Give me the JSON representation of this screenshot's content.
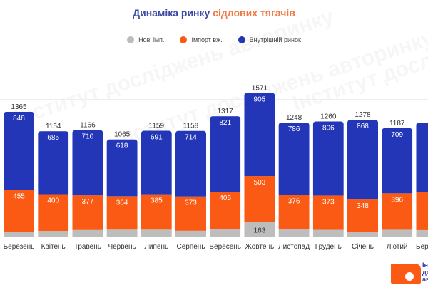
{
  "title": {
    "part1": "Динаміка ринку",
    "part2": "сідлових тягачів"
  },
  "legend": [
    {
      "label": "Нові імп.",
      "color": "#bdbdbd"
    },
    {
      "label": "Імпорт вж.",
      "color": "#fb5a14"
    },
    {
      "label": "Внутрішній ринок",
      "color": "#2336b8"
    }
  ],
  "watermark": "Інститут досліджень авторинку",
  "logo": {
    "lines": [
      "Ін",
      "до",
      "ав"
    ]
  },
  "chart_data": {
    "type": "bar",
    "stacked": true,
    "title": "Динаміка ринку сідлових тягачів",
    "legend_position": "top",
    "grid": true,
    "categories": [
      "Березень",
      "Квітень",
      "Травень",
      "Червень",
      "Липень",
      "Серпень",
      "Вересень",
      "Жовтень",
      "Листопад",
      "Грудень",
      "Січень",
      "Лютий",
      "Березень"
    ],
    "series": [
      {
        "name": "Нові імп.",
        "color": "#bdbdbd",
        "values": [
          62,
          69,
          79,
          83,
          83,
          71,
          91,
          163,
          86,
          81,
          62,
          82,
          78
        ]
      },
      {
        "name": "Імпорт вж.",
        "color": "#fb5a14",
        "values": [
          455,
          400,
          377,
          364,
          385,
          373,
          405,
          503,
          376,
          373,
          348,
          396,
          410
        ]
      },
      {
        "name": "Внутрішній ринок",
        "color": "#2336b8",
        "values": [
          848,
          685,
          710,
          618,
          691,
          714,
          821,
          905,
          786,
          806,
          868,
          709,
          760
        ]
      }
    ],
    "totals": [
      1365,
      1154,
      1166,
      1065,
      1159,
      1158,
      1317,
      1571,
      1248,
      1260,
      1278,
      1187,
      1248
    ],
    "data_labels": {
      "Нові імп.": [
        null,
        null,
        null,
        null,
        null,
        null,
        null,
        163,
        null,
        null,
        null,
        null,
        null
      ]
    },
    "ylim": [
      0,
      1600
    ]
  }
}
